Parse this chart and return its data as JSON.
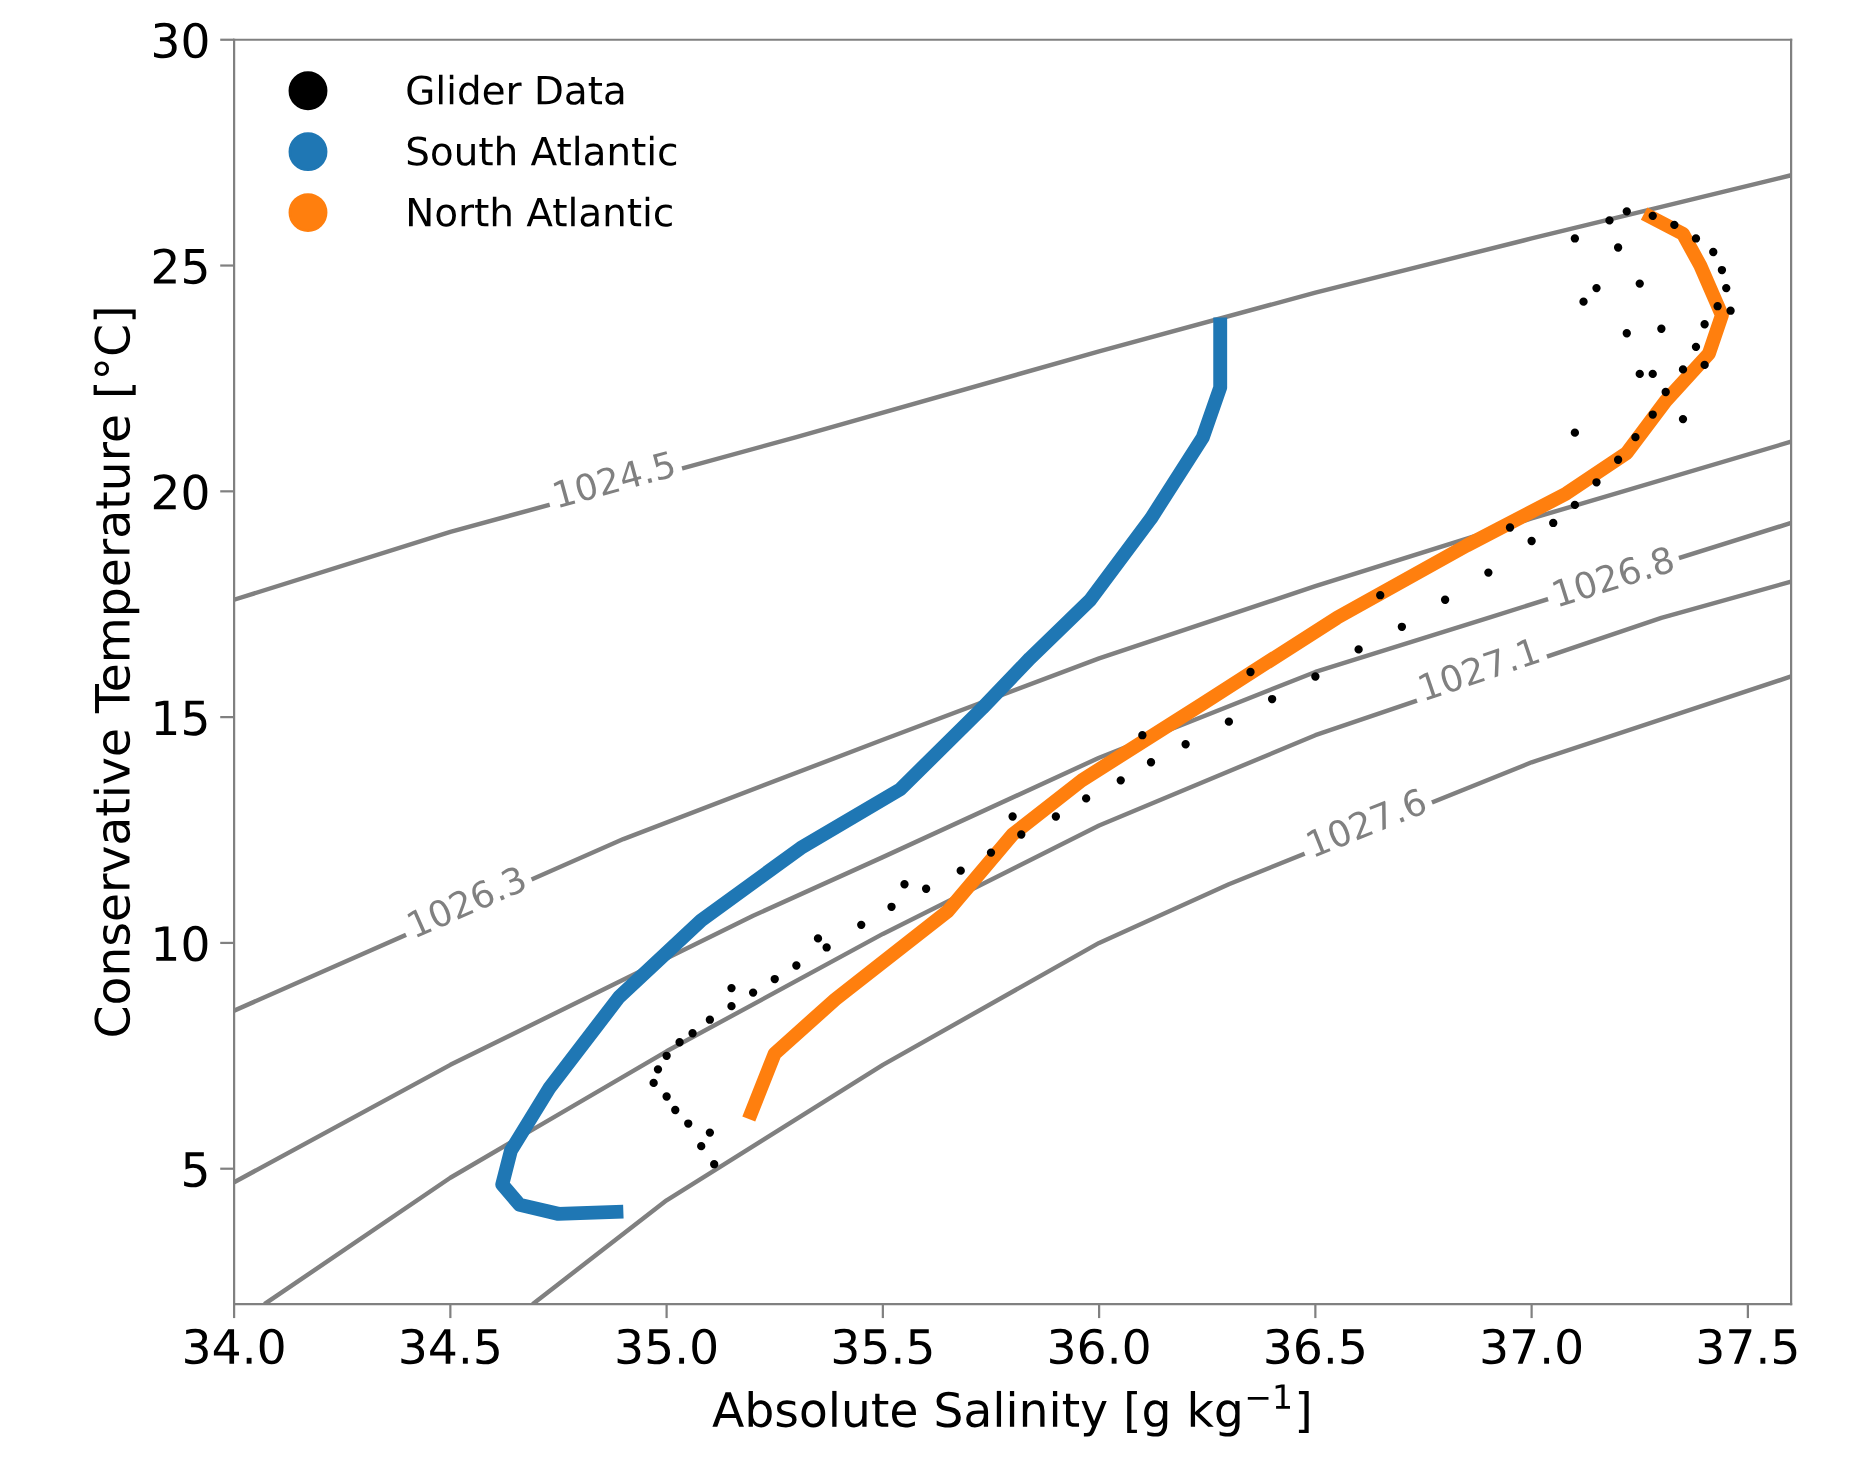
{
  "chart_data": {
    "type": "scatter",
    "xlabel": "Absolute Salinity [g kg$^{−1}$]",
    "ylabel": "Conservative Temperature [°C]",
    "xlim": [
      34.0,
      37.6
    ],
    "ylim": [
      2,
      30
    ],
    "xticks": [
      {
        "value": 34,
        "label": "34.0"
      },
      34.5,
      {
        "value": 35,
        "label": "35.0"
      },
      35.5,
      {
        "value": 36,
        "label": "36.0"
      },
      36.5,
      {
        "value": 37,
        "label": "37.0"
      },
      37.5
    ],
    "yticks": [
      5,
      10,
      15,
      20,
      25,
      30
    ],
    "grid": false,
    "legend": "top left",
    "series": [
      {
        "type": "line",
        "color": "#808080",
        "x": [
          34.0,
          34.5,
          35.3,
          36.0,
          36.5,
          37.0,
          37.6
        ],
        "values": [
          17.6,
          19.1,
          21.2,
          23.1,
          24.4,
          25.6,
          27.0
        ]
      },
      {
        "type": "line",
        "color": "#808080",
        "x": [
          34.0,
          34.9,
          35.5,
          36.0,
          36.5,
          37.0,
          37.6
        ],
        "values": [
          8.5,
          12.3,
          14.5,
          16.3,
          17.9,
          19.4,
          21.1
        ]
      },
      {
        "type": "line",
        "color": "#808080",
        "x": [
          34.0,
          34.5,
          35.2,
          35.5,
          36.0,
          36.5,
          36.9,
          37.6
        ],
        "values": [
          4.7,
          7.3,
          10.6,
          11.9,
          14.1,
          16.0,
          17.2,
          19.3
        ]
      },
      {
        "type": "line",
        "color": "#808080",
        "x": [
          34.07,
          34.5,
          35.0,
          35.5,
          36.0,
          36.5,
          37.3,
          37.6
        ],
        "values": [
          2.0,
          4.8,
          7.6,
          10.2,
          12.6,
          14.6,
          17.2,
          18.0
        ]
      },
      {
        "type": "line",
        "color": "#808080",
        "x": [
          34.69,
          35.0,
          35.5,
          36.0,
          36.3,
          37.0,
          37.6
        ],
        "values": [
          2.0,
          4.3,
          7.3,
          10.0,
          11.3,
          14.0,
          15.9
        ]
      },
      {
        "name": "Glider Data",
        "color": "#000000",
        "marker": "circle",
        "x": [
          35.11,
          35.08,
          35.1,
          35.05,
          35.02,
          35.0,
          34.97,
          34.98,
          35.0,
          35.03,
          35.06,
          35.1,
          35.15,
          35.2,
          35.25,
          35.3,
          35.37,
          35.45,
          35.52,
          35.6,
          35.68,
          35.75,
          35.82,
          35.9,
          35.97,
          36.05,
          36.12,
          36.2,
          36.3,
          36.4,
          36.5,
          36.6,
          36.7,
          36.8,
          36.9,
          37.0,
          37.05,
          37.1,
          37.15,
          37.2,
          37.24,
          37.28,
          37.31,
          37.35,
          37.38,
          37.4,
          37.43,
          37.45,
          37.46,
          37.44,
          37.42,
          37.38,
          37.33,
          37.28,
          37.22,
          37.18,
          37.2,
          37.25,
          37.3,
          37.28,
          37.22,
          37.15,
          37.1,
          37.12,
          37.35,
          37.4,
          35.15,
          35.35,
          35.55,
          35.8,
          36.1,
          36.35,
          36.65,
          36.95,
          37.1,
          37.25
        ],
        "values": [
          5.1,
          5.5,
          5.8,
          6.0,
          6.3,
          6.6,
          6.9,
          7.2,
          7.5,
          7.8,
          8.0,
          8.3,
          8.6,
          8.9,
          9.2,
          9.5,
          9.9,
          10.4,
          10.8,
          11.2,
          11.6,
          12.0,
          12.4,
          12.8,
          13.2,
          13.6,
          14.0,
          14.4,
          14.9,
          15.4,
          15.9,
          16.5,
          17.0,
          17.6,
          18.2,
          18.9,
          19.3,
          19.7,
          20.2,
          20.7,
          21.2,
          21.7,
          22.2,
          22.7,
          23.2,
          23.7,
          24.1,
          24.5,
          24.0,
          24.9,
          25.3,
          25.6,
          25.9,
          26.1,
          26.2,
          26.0,
          25.4,
          24.6,
          23.6,
          22.6,
          23.5,
          24.5,
          25.6,
          24.2,
          21.6,
          22.8,
          9.0,
          10.1,
          11.3,
          12.8,
          14.6,
          16.0,
          17.7,
          19.2,
          21.3,
          22.6
        ]
      },
      {
        "type": "line",
        "name": "South Atlantic",
        "color": "#1f77b4",
        "x": [
          36.28,
          36.28,
          36.24,
          36.12,
          35.98,
          35.84,
          35.73,
          35.54,
          35.31,
          35.08,
          34.89,
          34.73,
          34.64,
          34.62,
          34.66,
          34.75,
          34.9
        ],
        "values": [
          23.85,
          22.3,
          21.2,
          19.4,
          17.6,
          16.3,
          15.2,
          13.4,
          12.1,
          10.5,
          8.8,
          6.8,
          5.4,
          4.65,
          4.2,
          4.0,
          4.05
        ]
      },
      {
        "type": "line",
        "name": "North Atlantic",
        "color": "#ff7f0e",
        "x": [
          37.26,
          37.35,
          37.39,
          37.44,
          37.41,
          37.31,
          37.22,
          37.08,
          36.85,
          36.55,
          36.24,
          35.96,
          35.8,
          35.65,
          35.39,
          35.25,
          35.19
        ],
        "values": [
          26.15,
          25.7,
          25.0,
          23.9,
          23.05,
          22.0,
          20.85,
          19.95,
          18.8,
          17.2,
          15.3,
          13.6,
          12.4,
          10.7,
          8.75,
          7.55,
          6.1
        ]
      }
    ],
    "annotations": [
      {
        "text": "1024.5",
        "x": 34.88,
        "y": 20.2
      },
      {
        "text": "1026.3",
        "x": 34.54,
        "y": 10.85
      },
      {
        "text": "1026.8",
        "x": 37.19,
        "y": 18.05
      },
      {
        "text": "1027.1",
        "x": 36.88,
        "y": 16.0
      },
      {
        "text": "1027.6",
        "x": 36.62,
        "y": 12.6
      }
    ]
  }
}
